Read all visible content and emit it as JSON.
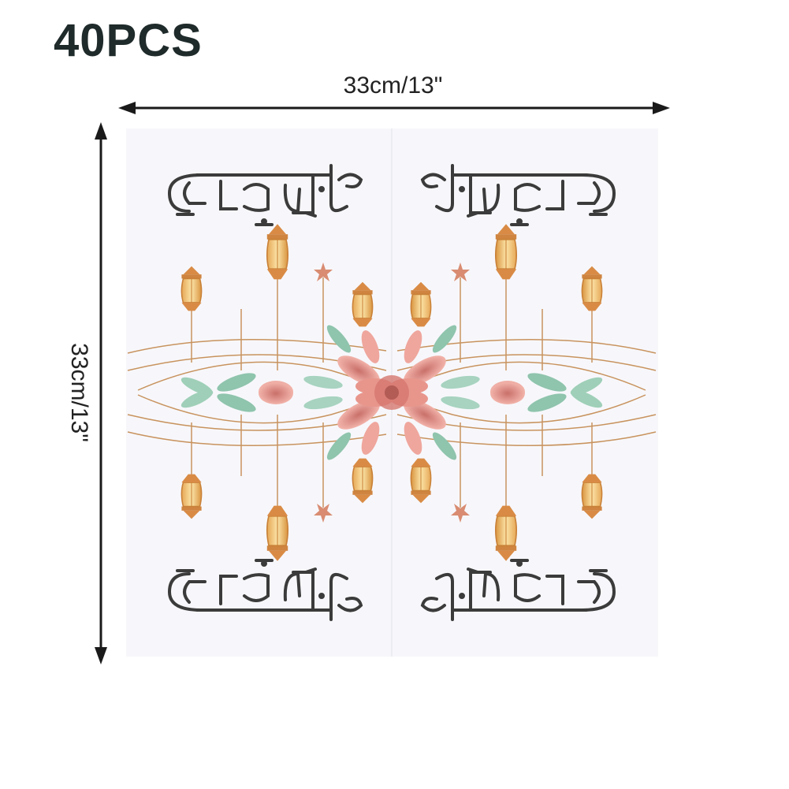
{
  "product": {
    "quantity_label": "40PCS",
    "width_label": "33cm/13\"",
    "height_label": "33cm/13\"",
    "colors": {
      "arrow": "#1a1a1a",
      "napkin": "#f7f7fb",
      "calligraphy": "#3b3b3b",
      "lantern_gold": "#e0a24a",
      "flower_pink": "#e8968c",
      "leaf_green": "#8fc4ad"
    },
    "icons": [
      "width-arrow-icon",
      "height-arrow-icon"
    ]
  }
}
